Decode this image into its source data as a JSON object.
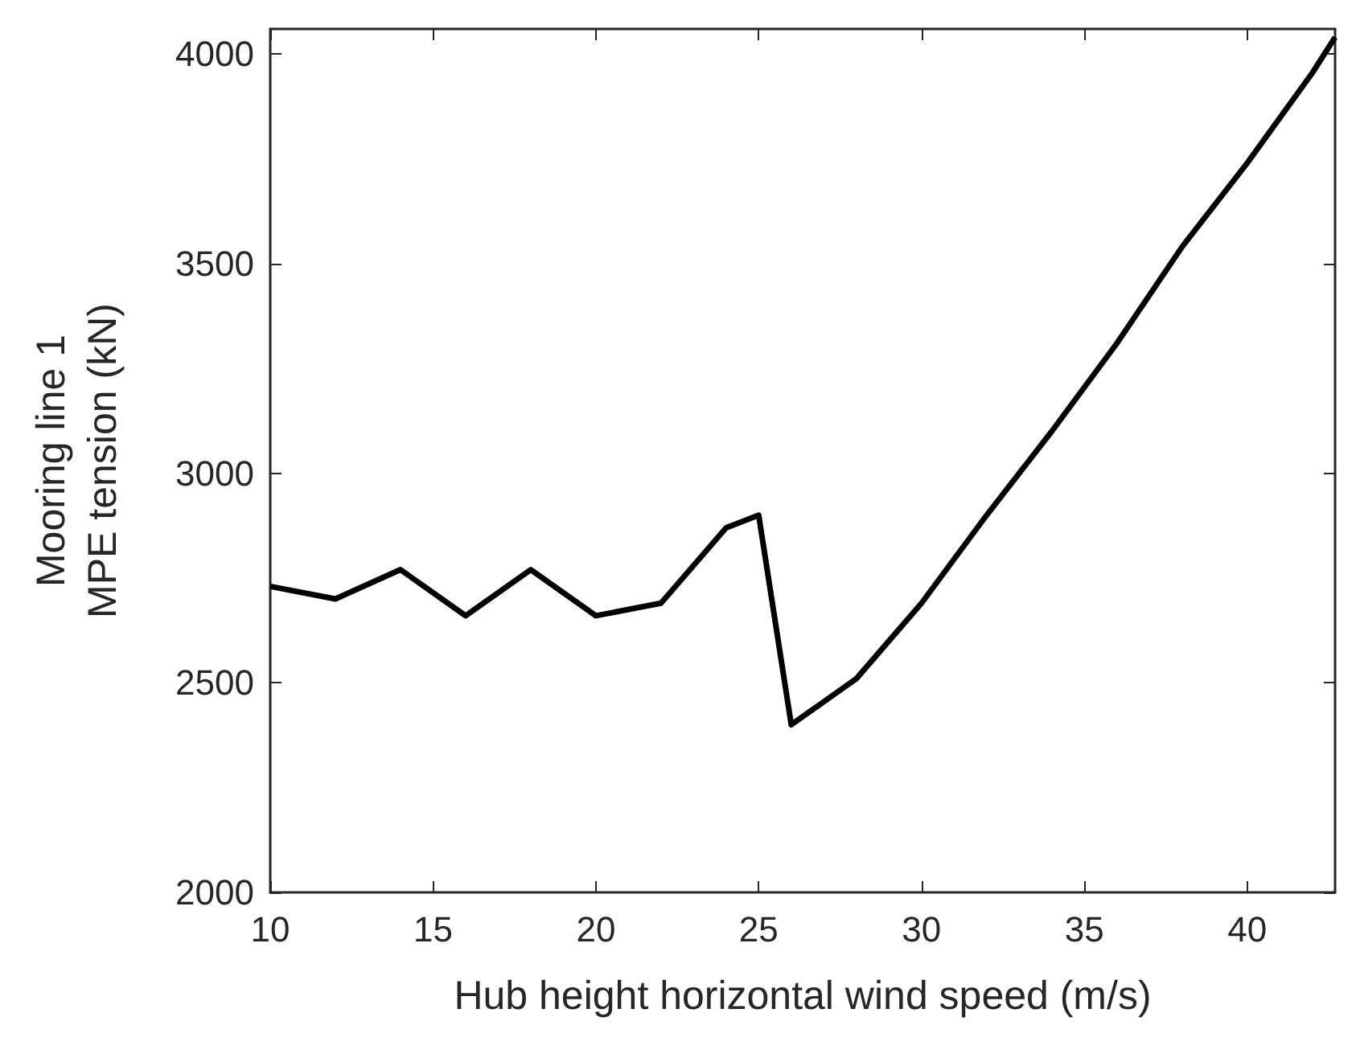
{
  "chart_data": {
    "type": "line",
    "xlabel": "Hub height horizontal wind speed (m/s)",
    "ylabel": "Mooring line 1\nMPE tension (kN)",
    "x": [
      10,
      12,
      14,
      16,
      18,
      20,
      22,
      24,
      25,
      26,
      28,
      30,
      32,
      34,
      36,
      38,
      40,
      42,
      42.7
    ],
    "series": [
      {
        "color": "#000000",
        "values": [
          2730,
          2700,
          2770,
          2660,
          2770,
          2660,
          2690,
          2870,
          2900,
          2400,
          2510,
          2690,
          2900,
          3100,
          3310,
          3540,
          3740,
          3955,
          4040
        ]
      }
    ],
    "xlim": [
      10,
      42.7
    ],
    "xticks": [
      10,
      15,
      20,
      25,
      30,
      35,
      40
    ],
    "ylim": [
      2000,
      4060
    ],
    "yticks": [
      2000,
      2500,
      3000,
      3500,
      4000
    ],
    "grid": false,
    "marker": "none",
    "line_style": "solid"
  }
}
